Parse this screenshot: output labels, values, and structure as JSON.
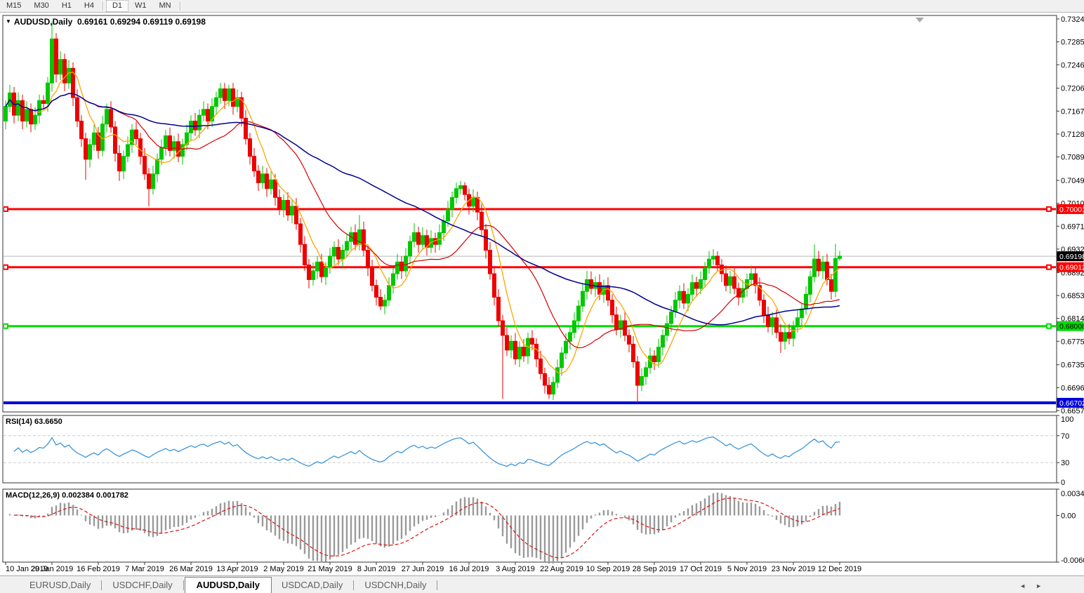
{
  "toolbar": {
    "buttons": [
      {
        "label": "M15",
        "active": false,
        "sep_after": false
      },
      {
        "label": "M30",
        "active": false,
        "sep_after": false
      },
      {
        "label": "H1",
        "active": false,
        "sep_after": false
      },
      {
        "label": "H4",
        "active": false,
        "sep_after": true
      },
      {
        "label": "D1",
        "active": true,
        "sep_after": false
      },
      {
        "label": "W1",
        "active": false,
        "sep_after": false
      },
      {
        "label": "MN",
        "active": false,
        "sep_after": true
      }
    ]
  },
  "icons": {
    "dropdown": "▼",
    "shift_marker": "▼",
    "tab_scroll_left": "◄",
    "tab_scroll_right": "►"
  },
  "title": {
    "symbol": "AUDUSD,Daily",
    "open": "0.69161",
    "high": "0.69294",
    "low": "0.69119",
    "close": "0.69198"
  },
  "tabs": {
    "items": [
      {
        "label": "EURUSD,Daily",
        "active": false
      },
      {
        "label": "USDCHF,Daily",
        "active": false
      },
      {
        "label": "AUDUSD,Daily",
        "active": true
      },
      {
        "label": "USDCAD,Daily",
        "active": false
      },
      {
        "label": "USDCNH,Daily",
        "active": false
      }
    ]
  },
  "chart_data": {
    "type": "candlestick",
    "symbol": "AUDUSD",
    "timeframe": "Daily",
    "current_ohlc": {
      "open": 0.69161,
      "high": 0.69294,
      "low": 0.69119,
      "close": 0.69198
    },
    "scale": 0.0001,
    "bull_color": "#00c800",
    "bear_color": "#ee0000",
    "price_axis_ticks": [
      "0.73240",
      "0.72850",
      "0.72460",
      "0.72060",
      "0.71670",
      "0.71280",
      "0.70890",
      "0.70490",
      "0.70100",
      "0.69710",
      "0.69320",
      "0.68920",
      "0.68530",
      "0.68140",
      "0.67750",
      "0.67350",
      "0.66960",
      "0.66570"
    ],
    "date_axis_ticks": [
      "10 Jan 2019",
      "29 Jan 2019",
      "16 Feb 2019",
      "7 Mar 2019",
      "26 Mar 2019",
      "13 Apr 2019",
      "2 May 2019",
      "21 May 2019",
      "8 Jun 2019",
      "27 Jun 2019",
      "16 Jul 2019",
      "3 Aug 2019",
      "22 Aug 2019",
      "10 Sep 2019",
      "28 Sep 2019",
      "17 Oct 2019",
      "5 Nov 2019",
      "23 Nov 2019",
      "12 Dec 2019"
    ],
    "horizontal_lines": [
      {
        "price": 0.70001,
        "label": "0.70001",
        "color": "#ff0000",
        "thickness": 3,
        "tag_text": "#ffffff",
        "handles": true
      },
      {
        "price": 0.69012,
        "label": "0.69012",
        "color": "#ff0000",
        "thickness": 3,
        "tag_text": "#ffffff",
        "handles": true
      },
      {
        "price": 0.68008,
        "label": "0.68008",
        "color": "#00dd00",
        "thickness": 3,
        "tag_text": "#000000",
        "handles": true
      },
      {
        "price": 0.66702,
        "label": "0.66702",
        "color": "#0000dd",
        "thickness": 4,
        "tag_text": "#ffffff",
        "handles": false
      }
    ],
    "current_price_line": {
      "price": 0.69198,
      "label": "0.69198",
      "line_color": "#b8b8b8",
      "tag_bg": "#000000",
      "tag_text": "#ffffff"
    },
    "moving_averages": [
      {
        "period": 7,
        "color": "#ffa500",
        "width": 1.3
      },
      {
        "period": 21,
        "color": "#d40000",
        "width": 1.2
      },
      {
        "period": 55,
        "color": "#000090",
        "width": 1.5
      }
    ],
    "candles": [
      [
        7150,
        7185,
        7136,
        7175
      ],
      [
        7175,
        7212,
        7165,
        7198
      ],
      [
        7198,
        7208,
        7146,
        7160
      ],
      [
        7160,
        7199,
        7150,
        7185
      ],
      [
        7185,
        7195,
        7136,
        7150
      ],
      [
        7150,
        7184,
        7140,
        7170
      ],
      [
        7170,
        7180,
        7131,
        7145
      ],
      [
        7145,
        7174,
        7135,
        7160
      ],
      [
        7160,
        7195,
        7146,
        7185
      ],
      [
        7185,
        7194,
        7170,
        7180
      ],
      [
        7180,
        7225,
        7166,
        7215
      ],
      [
        7215,
        7320,
        7200,
        7290
      ],
      [
        7290,
        7300,
        7216,
        7230
      ],
      [
        7230,
        7269,
        7220,
        7255
      ],
      [
        7255,
        7265,
        7201,
        7215
      ],
      [
        7215,
        7254,
        7205,
        7240
      ],
      [
        7240,
        7250,
        7176,
        7190
      ],
      [
        7190,
        7204,
        7140,
        7150
      ],
      [
        7150,
        7160,
        7106,
        7120
      ],
      [
        7120,
        7130,
        7050,
        7085
      ],
      [
        7085,
        7120,
        7071,
        7110
      ],
      [
        7110,
        7144,
        7100,
        7130
      ],
      [
        7130,
        7140,
        7086,
        7100
      ],
      [
        7100,
        7159,
        7090,
        7145
      ],
      [
        7145,
        7180,
        7131,
        7170
      ],
      [
        7170,
        7184,
        7130,
        7140
      ],
      [
        7140,
        7150,
        7081,
        7095
      ],
      [
        7095,
        7109,
        7048,
        7065
      ],
      [
        7065,
        7100,
        7051,
        7090
      ],
      [
        7090,
        7124,
        7080,
        7110
      ],
      [
        7110,
        7145,
        7096,
        7135
      ],
      [
        7135,
        7149,
        7110,
        7120
      ],
      [
        7120,
        7130,
        7076,
        7090
      ],
      [
        7090,
        7104,
        7050,
        7060
      ],
      [
        7060,
        7070,
        7005,
        7035
      ],
      [
        7035,
        7074,
        7025,
        7060
      ],
      [
        7060,
        7095,
        7046,
        7085
      ],
      [
        7085,
        7119,
        7075,
        7105
      ],
      [
        7105,
        7135,
        7091,
        7125
      ],
      [
        7125,
        7139,
        7090,
        7100
      ],
      [
        7100,
        7125,
        7086,
        7115
      ],
      [
        7115,
        7129,
        7080,
        7090
      ],
      [
        7090,
        7120,
        7076,
        7110
      ],
      [
        7110,
        7144,
        7100,
        7130
      ],
      [
        7130,
        7160,
        7116,
        7150
      ],
      [
        7150,
        7164,
        7125,
        7135
      ],
      [
        7135,
        7170,
        7121,
        7160
      ],
      [
        7160,
        7184,
        7150,
        7170
      ],
      [
        7170,
        7180,
        7136,
        7150
      ],
      [
        7150,
        7189,
        7140,
        7175
      ],
      [
        7175,
        7200,
        7161,
        7190
      ],
      [
        7190,
        7215,
        7180,
        7205
      ],
      [
        7205,
        7215,
        7171,
        7185
      ],
      [
        7185,
        7212,
        7175,
        7205
      ],
      [
        7205,
        7215,
        7161,
        7175
      ],
      [
        7175,
        7204,
        7165,
        7190
      ],
      [
        7190,
        7200,
        7141,
        7155
      ],
      [
        7155,
        7169,
        7110,
        7120
      ],
      [
        7120,
        7130,
        7076,
        7090
      ],
      [
        7090,
        7104,
        7055,
        7065
      ],
      [
        7065,
        7075,
        7031,
        7045
      ],
      [
        7045,
        7074,
        7035,
        7060
      ],
      [
        7060,
        7070,
        7021,
        7035
      ],
      [
        7035,
        7064,
        7025,
        7050
      ],
      [
        7050,
        7060,
        7006,
        7020
      ],
      [
        7020,
        7034,
        6990,
        7000
      ],
      [
        7000,
        7025,
        6986,
        7015
      ],
      [
        7015,
        7029,
        6980,
        6990
      ],
      [
        6990,
        7015,
        6976,
        7005
      ],
      [
        7005,
        7019,
        6965,
        6975
      ],
      [
        6975,
        6985,
        6926,
        6940
      ],
      [
        6940,
        6954,
        6895,
        6905
      ],
      [
        6905,
        6915,
        6865,
        6880
      ],
      [
        6880,
        6909,
        6870,
        6895
      ],
      [
        6895,
        6920,
        6881,
        6910
      ],
      [
        6910,
        6924,
        6875,
        6885
      ],
      [
        6885,
        6910,
        6871,
        6900
      ],
      [
        6900,
        6934,
        6890,
        6920
      ],
      [
        6920,
        6945,
        6906,
        6935
      ],
      [
        6935,
        6949,
        6905,
        6915
      ],
      [
        6915,
        6940,
        6901,
        6930
      ],
      [
        6930,
        6959,
        6920,
        6945
      ],
      [
        6945,
        6970,
        6931,
        6960
      ],
      [
        6960,
        6974,
        6930,
        6940
      ],
      [
        6940,
        6990,
        6930,
        6965
      ],
      [
        6965,
        6979,
        6920,
        6930
      ],
      [
        6930,
        6940,
        6886,
        6900
      ],
      [
        6900,
        6914,
        6860,
        6870
      ],
      [
        6870,
        6880,
        6836,
        6850
      ],
      [
        6850,
        6864,
        6828,
        6835
      ],
      [
        6835,
        6855,
        6821,
        6845
      ],
      [
        6845,
        6884,
        6835,
        6870
      ],
      [
        6870,
        6900,
        6856,
        6890
      ],
      [
        6890,
        6924,
        6880,
        6910
      ],
      [
        6910,
        6920,
        6881,
        6895
      ],
      [
        6895,
        6934,
        6885,
        6920
      ],
      [
        6920,
        6955,
        6906,
        6945
      ],
      [
        6945,
        6976,
        6935,
        6960
      ],
      [
        6960,
        6970,
        6926,
        6940
      ],
      [
        6940,
        6969,
        6930,
        6955
      ],
      [
        6955,
        6965,
        6921,
        6935
      ],
      [
        6935,
        6964,
        6925,
        6950
      ],
      [
        6950,
        6960,
        6926,
        6940
      ],
      [
        6940,
        6974,
        6930,
        6960
      ],
      [
        6960,
        6990,
        6946,
        6980
      ],
      [
        6980,
        7014,
        6970,
        7000
      ],
      [
        7000,
        7030,
        6986,
        7020
      ],
      [
        7020,
        7045,
        7010,
        7035
      ],
      [
        7035,
        7048,
        7025,
        7040
      ],
      [
        7040,
        7046,
        7015,
        7025
      ],
      [
        7025,
        7035,
        6991,
        7005
      ],
      [
        7005,
        7034,
        6995,
        7020
      ],
      [
        7020,
        7030,
        6981,
        6995
      ],
      [
        6995,
        7009,
        6955,
        6965
      ],
      [
        6965,
        6975,
        6916,
        6930
      ],
      [
        6930,
        6944,
        6880,
        6890
      ],
      [
        6890,
        6900,
        6836,
        6850
      ],
      [
        6850,
        6864,
        6800,
        6810
      ],
      [
        6810,
        6820,
        6677,
        6785
      ],
      [
        6785,
        6799,
        6750,
        6760
      ],
      [
        6760,
        6785,
        6746,
        6775
      ],
      [
        6775,
        6789,
        6735,
        6745
      ],
      [
        6745,
        6775,
        6731,
        6765
      ],
      [
        6765,
        6779,
        6740,
        6750
      ],
      [
        6750,
        6790,
        6736,
        6780
      ],
      [
        6780,
        6794,
        6760,
        6770
      ],
      [
        6770,
        6780,
        6731,
        6745
      ],
      [
        6745,
        6759,
        6710,
        6720
      ],
      [
        6720,
        6730,
        6686,
        6700
      ],
      [
        6700,
        6714,
        6677,
        6685
      ],
      [
        6685,
        6715,
        6675,
        6705
      ],
      [
        6705,
        6744,
        6695,
        6730
      ],
      [
        6730,
        6765,
        6716,
        6755
      ],
      [
        6755,
        6789,
        6745,
        6775
      ],
      [
        6775,
        6800,
        6761,
        6790
      ],
      [
        6790,
        6824,
        6780,
        6810
      ],
      [
        6810,
        6845,
        6796,
        6835
      ],
      [
        6835,
        6874,
        6825,
        6860
      ],
      [
        6860,
        6895,
        6846,
        6880
      ],
      [
        6880,
        6894,
        6855,
        6865
      ],
      [
        6865,
        6885,
        6851,
        6875
      ],
      [
        6875,
        6889,
        6845,
        6855
      ],
      [
        6855,
        6880,
        6841,
        6870
      ],
      [
        6870,
        6884,
        6835,
        6845
      ],
      [
        6845,
        6855,
        6806,
        6820
      ],
      [
        6820,
        6834,
        6785,
        6795
      ],
      [
        6795,
        6820,
        6781,
        6810
      ],
      [
        6810,
        6824,
        6775,
        6785
      ],
      [
        6785,
        6795,
        6756,
        6770
      ],
      [
        6770,
        6784,
        6730,
        6740
      ],
      [
        6740,
        6750,
        6670,
        6700
      ],
      [
        6700,
        6729,
        6690,
        6715
      ],
      [
        6715,
        6740,
        6701,
        6730
      ],
      [
        6730,
        6764,
        6720,
        6750
      ],
      [
        6750,
        6760,
        6726,
        6740
      ],
      [
        6740,
        6779,
        6730,
        6765
      ],
      [
        6765,
        6795,
        6751,
        6785
      ],
      [
        6785,
        6819,
        6775,
        6805
      ],
      [
        6805,
        6835,
        6791,
        6825
      ],
      [
        6825,
        6859,
        6815,
        6845
      ],
      [
        6845,
        6870,
        6831,
        6860
      ],
      [
        6860,
        6874,
        6830,
        6840
      ],
      [
        6840,
        6865,
        6826,
        6855
      ],
      [
        6855,
        6889,
        6845,
        6875
      ],
      [
        6875,
        6885,
        6851,
        6865
      ],
      [
        6865,
        6894,
        6855,
        6880
      ],
      [
        6880,
        6910,
        6866,
        6900
      ],
      [
        6900,
        6929,
        6890,
        6915
      ],
      [
        6915,
        6932,
        6905,
        6920
      ],
      [
        6920,
        6928,
        6895,
        6905
      ],
      [
        6905,
        6915,
        6876,
        6890
      ],
      [
        6890,
        6904,
        6860,
        6870
      ],
      [
        6870,
        6895,
        6856,
        6885
      ],
      [
        6885,
        6899,
        6855,
        6865
      ],
      [
        6865,
        6875,
        6836,
        6850
      ],
      [
        6850,
        6879,
        6840,
        6865
      ],
      [
        6865,
        6890,
        6851,
        6880
      ],
      [
        6880,
        6904,
        6870,
        6890
      ],
      [
        6890,
        6900,
        6856,
        6870
      ],
      [
        6870,
        6884,
        6835,
        6845
      ],
      [
        6845,
        6855,
        6806,
        6820
      ],
      [
        6820,
        6834,
        6790,
        6800
      ],
      [
        6800,
        6825,
        6786,
        6815
      ],
      [
        6815,
        6829,
        6780,
        6790
      ],
      [
        6790,
        6804,
        6755,
        6775
      ],
      [
        6775,
        6800,
        6761,
        6790
      ],
      [
        6790,
        6804,
        6770,
        6780
      ],
      [
        6780,
        6810,
        6766,
        6800
      ],
      [
        6800,
        6829,
        6790,
        6815
      ],
      [
        6815,
        6840,
        6801,
        6830
      ],
      [
        6830,
        6869,
        6820,
        6855
      ],
      [
        6855,
        6895,
        6841,
        6885
      ],
      [
        6885,
        6940,
        6875,
        6915
      ],
      [
        6915,
        6929,
        6885,
        6895
      ],
      [
        6895,
        6920,
        6881,
        6910
      ],
      [
        6910,
        6924,
        6870,
        6880
      ],
      [
        6880,
        6890,
        6846,
        6860
      ],
      [
        6860,
        6941,
        6850,
        6916
      ],
      [
        6916,
        6929,
        6912,
        6920
      ]
    ]
  },
  "indicators": {
    "rsi": {
      "name": "RSI(14)",
      "value": "63.6650",
      "period": 14,
      "range": [
        0,
        100
      ],
      "axis_labels": [
        "100",
        "70",
        "30",
        "0"
      ],
      "axis_values": [
        100,
        70,
        30,
        0
      ],
      "dashed_levels": [
        70,
        30
      ],
      "line_color": "#3a96dc",
      "level_color": "#c9c9c9"
    },
    "macd": {
      "name": "MACD(12,26,9)",
      "value": "0.002384",
      "signal_value": "0.001782",
      "fast": 12,
      "slow": 26,
      "signal": 9,
      "range": [
        -0.006069,
        0.003421
      ],
      "axis_labels": [
        "0.003421",
        "0.00",
        "-0.006069"
      ],
      "axis_values": [
        0.003421,
        0.0,
        -0.006069
      ],
      "histogram_color": "#9a9a9a",
      "signal_color": "#e01010"
    }
  }
}
